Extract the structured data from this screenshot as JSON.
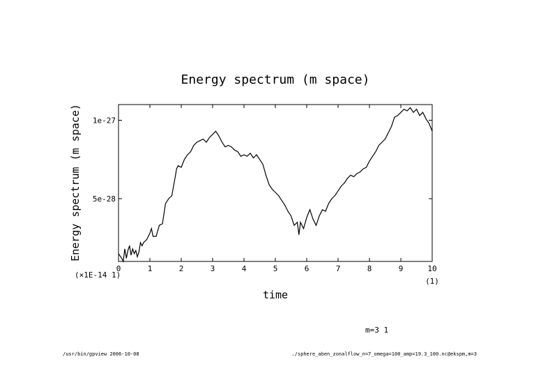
{
  "chart_data": {
    "type": "line",
    "title": "Energy spectrum (m space)",
    "xlabel": "time",
    "ylabel": "Energy spectrum (m space)",
    "xlim": [
      0,
      10
    ],
    "ylim": [
      1e-28,
      1.1e-27
    ],
    "x_ticks": [
      0,
      1,
      2,
      3,
      4,
      5,
      6,
      7,
      8,
      9,
      10
    ],
    "x_tick_labels": [
      "0",
      "1",
      "2",
      "3",
      "4",
      "5",
      "6",
      "7",
      "8",
      "9",
      "10"
    ],
    "y_ticks": [
      5e-28,
      1e-27
    ],
    "y_tick_labels": [
      "5e-28",
      "1e-27"
    ],
    "x_multiplier_label": "(1)",
    "y_multiplier_label": "(×1E-14 1)",
    "legend": "m=3 1",
    "series": [
      {
        "name": "m=3 1",
        "x": [
          0.0,
          0.1,
          0.15,
          0.2,
          0.25,
          0.3,
          0.35,
          0.4,
          0.45,
          0.5,
          0.55,
          0.6,
          0.65,
          0.7,
          0.75,
          0.8,
          0.9,
          1.0,
          1.05,
          1.1,
          1.2,
          1.3,
          1.4,
          1.5,
          1.6,
          1.7,
          1.8,
          1.85,
          1.9,
          2.0,
          2.1,
          2.2,
          2.3,
          2.4,
          2.5,
          2.6,
          2.7,
          2.8,
          2.9,
          3.0,
          3.1,
          3.2,
          3.3,
          3.4,
          3.5,
          3.6,
          3.7,
          3.8,
          3.9,
          4.0,
          4.1,
          4.2,
          4.3,
          4.4,
          4.5,
          4.6,
          4.7,
          4.8,
          4.9,
          5.0,
          5.1,
          5.2,
          5.3,
          5.4,
          5.5,
          5.6,
          5.7,
          5.75,
          5.8,
          5.9,
          6.0,
          6.1,
          6.2,
          6.3,
          6.4,
          6.5,
          6.6,
          6.7,
          6.8,
          6.9,
          7.0,
          7.1,
          7.2,
          7.3,
          7.4,
          7.5,
          7.6,
          7.7,
          7.8,
          7.9,
          8.0,
          8.1,
          8.2,
          8.3,
          8.4,
          8.5,
          8.6,
          8.7,
          8.8,
          8.9,
          9.0,
          9.1,
          9.2,
          9.3,
          9.4,
          9.5,
          9.6,
          9.7,
          9.8,
          9.9,
          10.0
        ],
        "y": [
          1.5e-28,
          1.2e-28,
          1e-28,
          1.8e-28,
          1.2e-28,
          1.7e-28,
          2e-28,
          1.4e-28,
          1.8e-28,
          1.5e-28,
          1.7e-28,
          1.3e-28,
          1.6e-28,
          2.2e-28,
          2e-28,
          2.2e-28,
          2.4e-28,
          2.8e-28,
          3.1e-28,
          2.6e-28,
          2.6e-28,
          3.3e-28,
          3.4e-28,
          4.7e-28,
          5e-28,
          5.2e-28,
          6.3e-28,
          6.9e-28,
          7.1e-28,
          7e-28,
          7.5e-28,
          7.8e-28,
          8e-28,
          8.4e-28,
          8.6e-28,
          8.7e-28,
          8.8e-28,
          8.6e-28,
          8.9e-28,
          9.1e-28,
          9.3e-28,
          9e-28,
          8.6e-28,
          8.3e-28,
          8.4e-28,
          8.3e-28,
          8.1e-28,
          8e-28,
          7.7e-28,
          7.8e-28,
          7.7e-28,
          7.9e-28,
          7.6e-28,
          7.8e-28,
          7.5e-28,
          7.2e-28,
          6.5e-28,
          5.9e-28,
          5.6e-28,
          5.4e-28,
          5.2e-28,
          4.9e-28,
          4.6e-28,
          4.2e-28,
          3.9e-28,
          3.3e-28,
          3.5e-28,
          2.7e-28,
          3.5e-28,
          3.1e-28,
          3.8e-28,
          4.3e-28,
          3.7e-28,
          3.3e-28,
          3.9e-28,
          4.3e-28,
          4.2e-28,
          4.7e-28,
          5e-28,
          5.2e-28,
          5.5e-28,
          5.8e-28,
          6e-28,
          6.3e-28,
          6.5e-28,
          6.4e-28,
          6.6e-28,
          6.7e-28,
          6.9e-28,
          7e-28,
          7.4e-28,
          7.7e-28,
          8e-28,
          8.4e-28,
          8.6e-28,
          8.8e-28,
          9.2e-28,
          9.6e-28,
          1.02e-27,
          1.03e-27,
          1.05e-27,
          1.07e-27,
          1.06e-27,
          1.08e-27,
          1.05e-27,
          1.07e-27,
          1.03e-27,
          1.05e-27,
          1.01e-27,
          9.8e-28,
          9.3e-28
        ]
      }
    ]
  },
  "footer": {
    "left": "/usr/bin/gpview  2006-10-08",
    "right": "./sphere_aben_zonalflow_n=7_omega=100_amp=19.3_100.nc@ekspm,m=3"
  },
  "colors": {
    "line": "#000000",
    "background": "#ffffff"
  }
}
